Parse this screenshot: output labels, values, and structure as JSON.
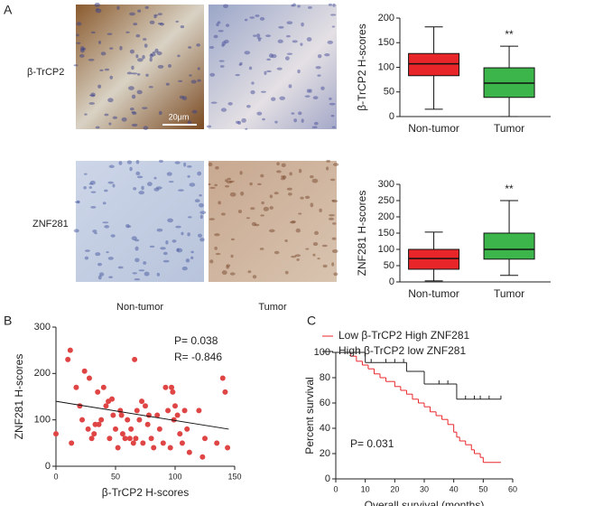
{
  "figure": {
    "panel_a": "A",
    "panel_b": "B",
    "panel_c": "C",
    "row_1": "β-TrCP2",
    "row_2": "ZNF281",
    "col_1": "Non-tumor",
    "col_2": "Tumor",
    "scale_bar": "20μm"
  },
  "chart_data": [
    {
      "type": "box",
      "ylabel": "β-TrCP2 H-scores",
      "categories": [
        "Non-tumor",
        "Tumor"
      ],
      "annotation": "**",
      "boxes": [
        {
          "min": 15,
          "q1": 83,
          "median": 107,
          "q3": 128,
          "max": 182,
          "color": "#e8262a"
        },
        {
          "min": 0,
          "q1": 39,
          "median": 68,
          "q3": 99,
          "max": 143,
          "color": "#3cb54a"
        }
      ],
      "ylim": [
        0,
        200
      ],
      "yticks": [
        0,
        50,
        100,
        150,
        200
      ]
    },
    {
      "type": "box",
      "ylabel": "ZNF281 H-scores",
      "categories": [
        "Non-tumor",
        "Tumor"
      ],
      "annotation": "**",
      "boxes": [
        {
          "min": 3,
          "q1": 39,
          "median": 72,
          "q3": 100,
          "max": 153,
          "color": "#e8262a"
        },
        {
          "min": 20,
          "q1": 70,
          "median": 100,
          "q3": 150,
          "max": 250,
          "color": "#3cb54a"
        }
      ],
      "ylim": [
        0,
        300
      ],
      "yticks": [
        0,
        50,
        100,
        150,
        200,
        250,
        300
      ]
    },
    {
      "type": "scatter",
      "xlabel": "β-TrCP2 H-scores",
      "ylabel": "ZNF281 H-scores",
      "color": "#e04545",
      "annotations": [
        "P= 0.038",
        "R= -0.846"
      ],
      "x": [
        0,
        10,
        12,
        13,
        17,
        20,
        22,
        24,
        27,
        28,
        30,
        32,
        33,
        35,
        36,
        38,
        40,
        42,
        44,
        45,
        47,
        48,
        50,
        52,
        54,
        55,
        56,
        58,
        60,
        62,
        63,
        65,
        66,
        67,
        68,
        70,
        72,
        73,
        75,
        77,
        78,
        80,
        82,
        85,
        87,
        90,
        92,
        94,
        96,
        97,
        98,
        99,
        100,
        102,
        104,
        106,
        108,
        110,
        112,
        120,
        123,
        125,
        135,
        140,
        142,
        144
      ],
      "values": [
        70,
        230,
        250,
        50,
        170,
        130,
        100,
        205,
        80,
        190,
        60,
        70,
        90,
        160,
        90,
        100,
        170,
        130,
        140,
        60,
        145,
        110,
        80,
        40,
        120,
        110,
        70,
        60,
        100,
        60,
        80,
        50,
        230,
        60,
        120,
        100,
        140,
        50,
        130,
        90,
        110,
        60,
        40,
        110,
        80,
        50,
        170,
        120,
        40,
        170,
        160,
        100,
        130,
        110,
        70,
        50,
        120,
        80,
        30,
        120,
        20,
        60,
        50,
        190,
        160,
        40
      ],
      "fit_line": {
        "x": [
          0,
          145
        ],
        "y": [
          140,
          80
        ]
      },
      "xlim": [
        0,
        150
      ],
      "xticks": [
        0,
        50,
        100,
        150
      ],
      "ylim": [
        0,
        300
      ],
      "yticks": [
        0,
        100,
        200,
        300
      ]
    },
    {
      "type": "survival",
      "xlabel": "Overall survival (months)",
      "ylabel": "Percent survival",
      "annotation": "P= 0.031",
      "series": [
        {
          "name": "Low β-TrCP2 High ZNF281",
          "color": "#e8262a",
          "x": [
            0,
            5,
            7,
            9,
            11,
            13,
            15,
            17,
            20,
            22,
            24,
            26,
            28,
            30,
            32,
            34,
            36,
            38,
            40,
            41,
            42,
            44,
            46,
            47,
            49,
            50,
            56
          ],
          "values": [
            100,
            97,
            93,
            90,
            87,
            83,
            80,
            77,
            73,
            70,
            67,
            63,
            60,
            57,
            53,
            50,
            47,
            43,
            37,
            33,
            30,
            27,
            23,
            20,
            17,
            13,
            13
          ],
          "censor_x": [],
          "censor_y": []
        },
        {
          "name": "High β-TrCP2 low ZNF281",
          "color": "#222222",
          "x": [
            0,
            10,
            24,
            30,
            41,
            56
          ],
          "values": [
            100,
            92,
            85,
            75,
            63,
            63
          ],
          "censor_x": [
            8,
            12,
            17,
            20,
            23,
            35,
            38,
            44,
            47,
            49,
            52,
            56
          ],
          "censor_y": [
            100,
            92,
            92,
            92,
            92,
            75,
            75,
            63,
            63,
            63,
            63,
            63
          ]
        }
      ],
      "xlim": [
        0,
        60
      ],
      "xticks": [
        0,
        10,
        20,
        30,
        40,
        50,
        60
      ],
      "ylim": [
        0,
        100
      ],
      "yticks": [
        0,
        20,
        40,
        60,
        80,
        100
      ]
    }
  ]
}
